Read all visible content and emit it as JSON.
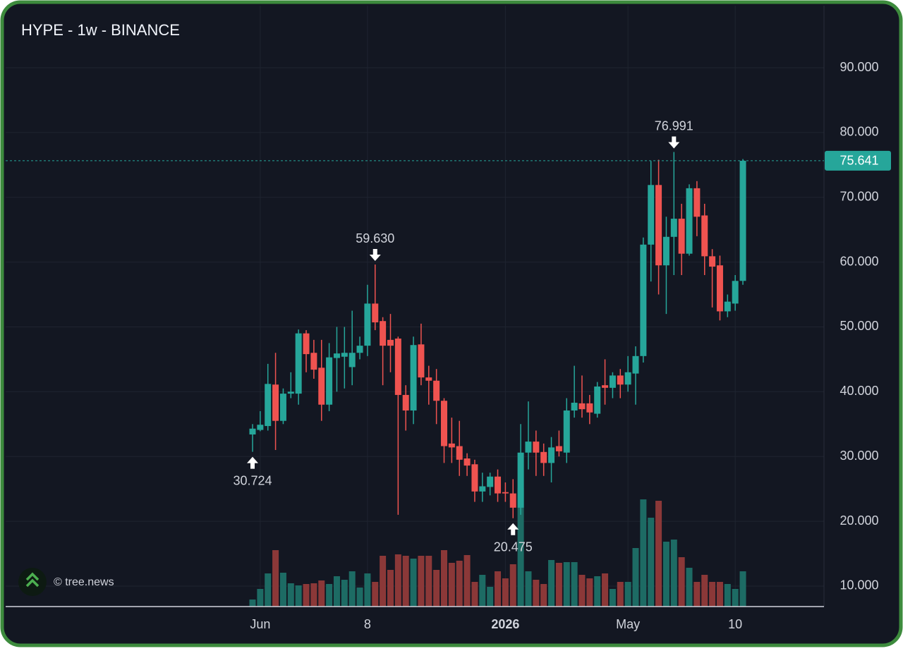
{
  "chart_data": {
    "type": "candlestick",
    "title": "HYPE - 1w - BINANCE",
    "watermark": "© tree.news",
    "categories": [
      null,
      "Jun",
      null,
      null,
      null,
      null,
      null,
      null,
      null,
      null,
      null,
      null,
      null,
      null,
      null,
      "8",
      null,
      null,
      null,
      null,
      null,
      null,
      null,
      null,
      null,
      null,
      null,
      null,
      null,
      null,
      null,
      null,
      null,
      "2026",
      null,
      null,
      null,
      null,
      null,
      null,
      null,
      null,
      null,
      null,
      null,
      null,
      null,
      null,
      null,
      "May",
      null,
      null,
      null,
      null,
      null,
      null,
      null,
      null,
      null,
      null,
      null,
      null,
      null,
      "10",
      null
    ],
    "open": [
      33.4,
      34.1,
      34.7,
      41.1,
      35.5,
      39.7,
      39.7,
      49,
      46,
      43.7,
      38,
      45.2,
      45.4,
      43.8,
      46,
      47.1,
      53.6,
      50.9,
      48,
      48.2,
      39.5,
      37.1,
      47.3,
      42.2,
      41.7,
      38.6,
      32,
      31.6,
      29.7,
      28.8,
      24.6,
      25.3,
      26.9,
      24.5,
      24.3,
      22.1,
      30.6,
      32.3,
      30.7,
      29,
      31.6,
      30.6,
      37.1,
      38.2,
      38.2,
      36.6,
      41,
      40.6,
      42.5,
      41.1,
      42.8,
      45.5,
      62.7,
      71.9,
      59.5,
      63.9,
      66.7,
      61.3,
      71.4,
      67.2,
      60.9,
      59.5,
      52.4,
      53.6,
      57.1
    ],
    "high": [
      35,
      37,
      44.3,
      46,
      40.5,
      43,
      49.6,
      49.5,
      48,
      48,
      47.5,
      50,
      50,
      52.5,
      48.5,
      56.5,
      59.63,
      51.5,
      52,
      48.5,
      41,
      48.5,
      50.5,
      44,
      43.5,
      39,
      36,
      35.5,
      30.5,
      29.5,
      27.5,
      27.5,
      28,
      26,
      26.5,
      35,
      38.5,
      34,
      32,
      33,
      34,
      39,
      44,
      42.5,
      39.5,
      41.5,
      45,
      43,
      43.5,
      45.5,
      47,
      63.8,
      75.6,
      75.8,
      67,
      76.991,
      69,
      72,
      72.5,
      69,
      62,
      61,
      55,
      58,
      75.9
    ],
    "low": [
      30.724,
      33.9,
      34,
      31,
      35,
      39,
      38,
      43,
      42,
      35.5,
      37,
      40,
      40.5,
      41,
      45,
      45.5,
      49.5,
      41,
      43,
      21,
      34,
      35,
      41,
      38,
      35,
      29,
      29,
      27,
      27,
      23,
      23,
      24,
      23,
      23,
      20.475,
      21,
      28,
      27,
      27,
      26,
      30,
      29,
      36,
      36,
      35,
      36,
      38,
      39,
      39,
      40,
      38,
      44.5,
      57,
      55,
      52,
      58,
      58,
      61,
      64,
      58,
      53,
      51,
      51.5,
      52.5,
      56.5
    ],
    "close": [
      34.3,
      34.9,
      41.2,
      35.5,
      39.7,
      40,
      49,
      45.8,
      43.4,
      38,
      45.3,
      45.9,
      46,
      46,
      47.1,
      53.6,
      50.7,
      47.1,
      47.1,
      39.5,
      37.1,
      47.2,
      42.2,
      41.7,
      38.6,
      31.6,
      31.4,
      29.5,
      28.6,
      24.6,
      25.4,
      26.9,
      24.3,
      24.3,
      22.1,
      30.6,
      32.3,
      30.6,
      29,
      31.4,
      30.8,
      37.1,
      38.3,
      37.3,
      36.8,
      40.8,
      40.6,
      42.5,
      41.1,
      43,
      45.5,
      62.7,
      71.9,
      59.5,
      63.9,
      66.7,
      61.3,
      71.4,
      67,
      60.9,
      59.3,
      52.4,
      53.9,
      57.1,
      75.641
    ],
    "volume": [
      10,
      25,
      47,
      80,
      48,
      33,
      30,
      32,
      33,
      37,
      32,
      43,
      38,
      50,
      27,
      47,
      35,
      72,
      52,
      74,
      72,
      68,
      72,
      72,
      52,
      80,
      62,
      65,
      73,
      35,
      45,
      28,
      50,
      40,
      60,
      168,
      50,
      38,
      32,
      66,
      62,
      63,
      63,
      45,
      40,
      43,
      47,
      25,
      35,
      35,
      83,
      152,
      126,
      150,
      92,
      95,
      70,
      55,
      35,
      45,
      35,
      35,
      32,
      25,
      50
    ],
    "volume_ylim": [
      0,
      852
    ],
    "up_color": "#26a69a",
    "down_color": "#ef5350",
    "up_volume_color": "#1d6b64",
    "down_volume_color": "#8b3838",
    "ylim": [
      6.84,
      99.58
    ],
    "yticks": [
      {
        "value": 10,
        "label": "10.000"
      },
      {
        "value": 20,
        "label": "20.000"
      },
      {
        "value": 30,
        "label": "30.000"
      },
      {
        "value": 40,
        "label": "40.000"
      },
      {
        "value": 50,
        "label": "50.000"
      },
      {
        "value": 60,
        "label": "60.000"
      },
      {
        "value": 70,
        "label": "70.000"
      },
      {
        "value": 80,
        "label": "80.000"
      },
      {
        "value": 90,
        "label": "90.000"
      }
    ],
    "annotations": [
      {
        "value": 30.724,
        "label": "30.724"
      },
      {
        "value": 59.63,
        "label": "59.630"
      },
      {
        "value": 20.475,
        "label": "20.475"
      },
      {
        "value": 76.991,
        "label": "76.991"
      }
    ],
    "grid": true
  }
}
